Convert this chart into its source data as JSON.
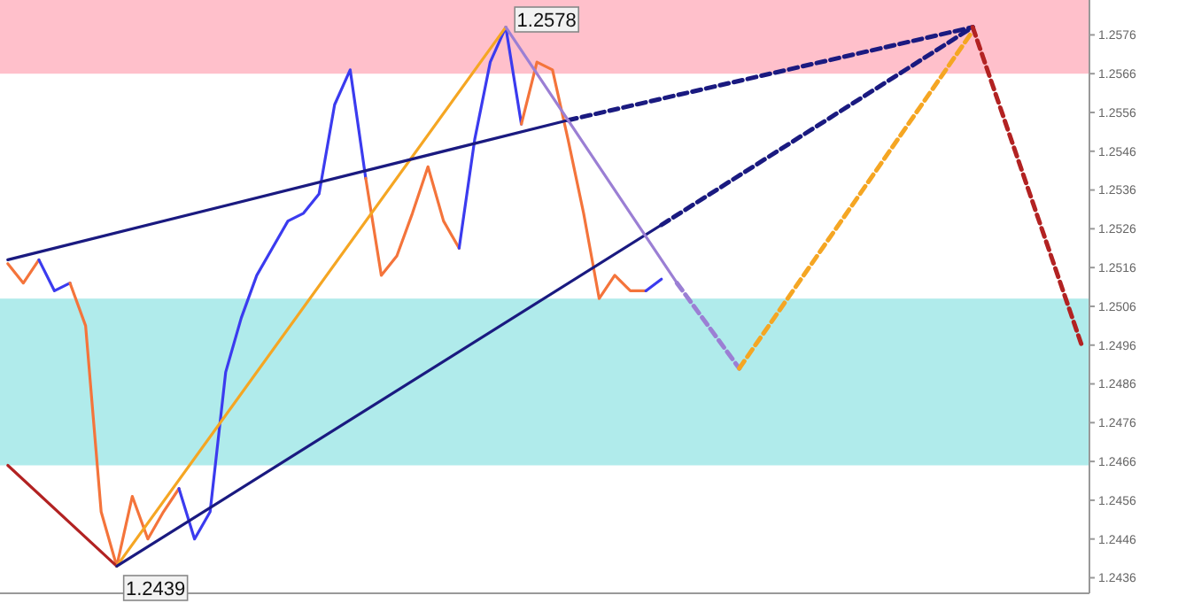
{
  "chart_data": {
    "type": "line",
    "categories": [
      null,
      null,
      null,
      null,
      null,
      null,
      null,
      null,
      null,
      null,
      null,
      null,
      null,
      null,
      null,
      null,
      null,
      null,
      null,
      null,
      null,
      null,
      null,
      null,
      null,
      null,
      null,
      null,
      null,
      null,
      null,
      null,
      null,
      null,
      null,
      null,
      null,
      null,
      null,
      null,
      null,
      null,
      null,
      null,
      null,
      null,
      null,
      null,
      null,
      null,
      null,
      null,
      null,
      null,
      null,
      null,
      null,
      null,
      null,
      null,
      null,
      null,
      null,
      null,
      null,
      null,
      null,
      null,
      null,
      null
    ],
    "ylim": [
      1.2432,
      1.2585
    ],
    "yticks": [
      1.2436,
      1.2446,
      1.2456,
      1.2466,
      1.2476,
      1.2486,
      1.2496,
      1.2506,
      1.2516,
      1.2526,
      1.2536,
      1.2546,
      1.2556,
      1.2566,
      1.2576
    ],
    "grid": false,
    "bands": [
      {
        "axis": "y",
        "from": 1.2566,
        "to": 1.2585,
        "color": "#ffc0cb"
      },
      {
        "axis": "y",
        "from": 1.2465,
        "to": 1.2508,
        "color": "#b0ebeb"
      }
    ],
    "series": [
      {
        "color": "#f4743b",
        "values": [
          1.2517,
          1.2512,
          1.2518,
          null,
          null,
          null,
          null,
          null,
          null,
          null,
          null,
          null,
          null,
          null,
          null,
          null,
          null,
          null,
          null,
          null,
          null,
          null,
          null,
          null,
          null,
          null,
          null,
          null,
          null,
          null,
          null,
          null,
          null,
          null,
          null,
          null,
          null,
          null,
          null,
          null,
          null,
          null,
          null,
          null,
          null,
          null,
          null,
          null,
          null,
          null,
          null,
          null,
          null,
          null,
          null,
          null,
          null,
          null,
          null,
          null,
          null,
          null,
          null,
          null,
          null,
          null,
          null,
          null,
          null,
          null
        ]
      },
      {
        "color": "#3b3bef",
        "values": [
          null,
          null,
          1.2518,
          1.251,
          1.2512,
          null,
          null,
          null,
          null,
          null,
          null,
          null,
          null,
          null,
          null,
          null,
          null,
          null,
          null,
          null,
          null,
          null,
          null,
          null,
          null,
          null,
          null,
          null,
          null,
          null,
          null,
          null,
          null,
          null,
          null,
          null,
          null,
          null,
          null,
          null,
          null,
          null,
          null,
          null,
          null,
          null,
          null,
          null,
          null,
          null,
          null,
          null,
          null,
          null,
          null,
          null,
          null,
          null,
          null,
          null,
          null,
          null,
          null,
          null,
          null,
          null,
          null,
          null,
          null,
          null
        ]
      },
      {
        "color": "#f4743b",
        "values": [
          null,
          null,
          null,
          null,
          1.2512,
          1.2501,
          1.2453,
          1.2439,
          1.2457,
          1.2446,
          1.2453,
          1.2459,
          null,
          null,
          null,
          null,
          null,
          null,
          null,
          null,
          null,
          null,
          null,
          null,
          null,
          null,
          null,
          null,
          null,
          null,
          null,
          null,
          null,
          null,
          null,
          null,
          null,
          null,
          null,
          null,
          null,
          null,
          null,
          null,
          null,
          null,
          null,
          null,
          null,
          null,
          null,
          null,
          null,
          null,
          null,
          null,
          null,
          null,
          null,
          null,
          null,
          null,
          null,
          null,
          null,
          null,
          null,
          null,
          null,
          null
        ]
      },
      {
        "color": "#3b3bef",
        "values": [
          null,
          null,
          null,
          null,
          null,
          null,
          null,
          null,
          null,
          null,
          null,
          1.2459,
          1.2446,
          1.2453,
          1.2489,
          1.2503,
          1.2514,
          1.2521,
          1.2528,
          1.253,
          1.2535,
          1.2558,
          1.2567,
          1.2539,
          null,
          null,
          null,
          null,
          null,
          null,
          null,
          null,
          null,
          null,
          null,
          null,
          null,
          null,
          null,
          null,
          null,
          null,
          null,
          null,
          null,
          null,
          null,
          null,
          null,
          null,
          null,
          null,
          null,
          null,
          null,
          null,
          null,
          null,
          null,
          null,
          null,
          null,
          null,
          null,
          null,
          null,
          null,
          null,
          null,
          null
        ]
      },
      {
        "color": "#f4743b",
        "values": [
          null,
          null,
          null,
          null,
          null,
          null,
          null,
          null,
          null,
          null,
          null,
          null,
          null,
          null,
          null,
          null,
          null,
          null,
          null,
          null,
          null,
          null,
          null,
          1.2539,
          1.2514,
          1.2519,
          1.253,
          1.2542,
          1.2528,
          1.2521,
          null,
          null,
          null,
          null,
          null,
          null,
          null,
          null,
          null,
          null,
          null,
          null,
          null,
          null,
          null,
          null,
          null,
          null,
          null,
          null,
          null,
          null,
          null,
          null,
          null,
          null,
          null,
          null,
          null,
          null,
          null,
          null,
          null,
          null,
          null,
          null,
          null,
          null,
          null,
          null
        ]
      },
      {
        "color": "#3b3bef",
        "values": [
          null,
          null,
          null,
          null,
          null,
          null,
          null,
          null,
          null,
          null,
          null,
          null,
          null,
          null,
          null,
          null,
          null,
          null,
          null,
          null,
          null,
          null,
          null,
          null,
          null,
          null,
          null,
          null,
          null,
          1.2521,
          1.2549,
          1.2569,
          1.2578,
          1.2553,
          null,
          null,
          null,
          null,
          null,
          null,
          null,
          null,
          null,
          null,
          null,
          null,
          null,
          null,
          null,
          null,
          null,
          null,
          null,
          null,
          null,
          null,
          null,
          null,
          null,
          null,
          null,
          null,
          null,
          null,
          null,
          null,
          null,
          null,
          null,
          null
        ]
      },
      {
        "color": "#f4743b",
        "values": [
          null,
          null,
          null,
          null,
          null,
          null,
          null,
          null,
          null,
          null,
          null,
          null,
          null,
          null,
          null,
          null,
          null,
          null,
          null,
          null,
          null,
          null,
          null,
          null,
          null,
          null,
          null,
          null,
          null,
          null,
          null,
          null,
          null,
          1.2553,
          1.2569,
          1.2567,
          1.2549,
          1.253,
          1.2508,
          1.2514,
          1.251,
          1.251,
          null,
          null,
          null,
          null,
          null,
          null,
          null,
          null,
          null,
          null,
          null,
          null,
          null,
          null,
          null,
          null,
          null,
          null,
          null,
          null,
          null,
          null,
          null,
          null,
          null,
          null,
          null,
          null
        ]
      },
      {
        "color": "#3b3bef",
        "values": [
          null,
          null,
          null,
          null,
          null,
          null,
          null,
          null,
          null,
          null,
          null,
          null,
          null,
          null,
          null,
          null,
          null,
          null,
          null,
          null,
          null,
          null,
          null,
          null,
          null,
          null,
          null,
          null,
          null,
          null,
          null,
          null,
          null,
          null,
          null,
          null,
          null,
          null,
          null,
          null,
          null,
          1.251,
          1.2513,
          null,
          null,
          null,
          null,
          null,
          null,
          null,
          null,
          null,
          null,
          null,
          null,
          null,
          null,
          null,
          null,
          null,
          null,
          null,
          null,
          null,
          null,
          null,
          null,
          null,
          null,
          null
        ]
      },
      {
        "color": "#b22222",
        "values": [
          1.2465,
          null,
          null,
          null,
          null,
          null,
          null,
          1.2439,
          null,
          null,
          null,
          null,
          null,
          null,
          null,
          null,
          null,
          null,
          null,
          null,
          null,
          null,
          null,
          null,
          null,
          null,
          null,
          null,
          null,
          null,
          null,
          null,
          null,
          null,
          null,
          null,
          null,
          null,
          null,
          null,
          null,
          null,
          null,
          null,
          null,
          null,
          null,
          null,
          null,
          null,
          null,
          null,
          null,
          null,
          null,
          null,
          null,
          null,
          null,
          null,
          null,
          null,
          null,
          null,
          null,
          null,
          null,
          null,
          null,
          null
        ]
      },
      {
        "color": "#f5a623",
        "values": [
          null,
          null,
          null,
          null,
          null,
          null,
          null,
          1.2439,
          null,
          null,
          null,
          null,
          null,
          null,
          null,
          null,
          null,
          null,
          null,
          null,
          null,
          null,
          null,
          null,
          null,
          null,
          null,
          null,
          null,
          null,
          null,
          null,
          1.2578,
          null,
          null,
          null,
          null,
          null,
          null,
          null,
          null,
          null,
          null,
          null,
          null,
          null,
          null,
          null,
          null,
          null,
          null,
          null,
          null,
          null,
          null,
          null,
          null,
          null,
          null,
          null,
          null,
          null,
          null,
          null,
          null,
          null,
          null,
          null,
          null,
          null
        ]
      },
      {
        "color": "#1a1a80",
        "values": [
          1.2518,
          null,
          null,
          null,
          null,
          null,
          null,
          null,
          null,
          null,
          null,
          null,
          null,
          null,
          null,
          null,
          null,
          null,
          null,
          null,
          null,
          null,
          null,
          null,
          null,
          null,
          null,
          null,
          null,
          null,
          null,
          null,
          null,
          null,
          null,
          null,
          1.2554,
          null,
          null,
          null,
          null,
          null,
          null,
          null,
          null,
          null,
          null,
          null,
          null,
          null,
          null,
          null,
          null,
          null,
          null,
          null,
          null,
          null,
          null,
          null,
          null,
          null,
          null,
          null,
          null,
          null,
          null,
          null,
          null,
          null
        ]
      },
      {
        "color": "#1a1a80",
        "line_style": "dashed",
        "values": [
          null,
          null,
          null,
          null,
          null,
          null,
          null,
          null,
          null,
          null,
          null,
          null,
          null,
          null,
          null,
          null,
          null,
          null,
          null,
          null,
          null,
          null,
          null,
          null,
          null,
          null,
          null,
          null,
          null,
          null,
          null,
          null,
          null,
          null,
          null,
          null,
          1.2554,
          null,
          null,
          null,
          null,
          null,
          null,
          null,
          null,
          null,
          null,
          null,
          null,
          null,
          null,
          null,
          null,
          null,
          null,
          null,
          null,
          null,
          null,
          null,
          null,
          null,
          1.2578,
          null,
          null,
          null,
          null,
          null,
          null,
          null
        ]
      },
      {
        "color": "#1a1a80",
        "values": [
          null,
          null,
          null,
          null,
          null,
          null,
          null,
          1.2439,
          null,
          null,
          null,
          null,
          null,
          null,
          null,
          null,
          null,
          null,
          null,
          null,
          null,
          null,
          null,
          null,
          null,
          null,
          null,
          null,
          null,
          null,
          null,
          null,
          null,
          null,
          null,
          null,
          null,
          null,
          null,
          null,
          null,
          null,
          1.2527,
          null,
          null,
          null,
          null,
          null,
          null,
          null,
          null,
          null,
          null,
          null,
          null,
          null,
          null,
          null,
          null,
          null,
          null,
          null,
          null,
          null,
          null,
          null,
          null,
          null,
          null,
          null
        ]
      },
      {
        "color": "#1a1a80",
        "line_style": "dashed",
        "values": [
          null,
          null,
          null,
          null,
          null,
          null,
          null,
          null,
          null,
          null,
          null,
          null,
          null,
          null,
          null,
          null,
          null,
          null,
          null,
          null,
          null,
          null,
          null,
          null,
          null,
          null,
          null,
          null,
          null,
          null,
          null,
          null,
          null,
          null,
          null,
          null,
          null,
          null,
          null,
          null,
          null,
          null,
          1.2527,
          null,
          null,
          null,
          null,
          null,
          null,
          null,
          null,
          null,
          null,
          null,
          null,
          null,
          null,
          null,
          null,
          null,
          null,
          null,
          1.2578,
          null,
          null,
          null,
          null,
          null,
          null,
          null
        ]
      },
      {
        "color": "#9b7fd4",
        "values": [
          null,
          null,
          null,
          null,
          null,
          null,
          null,
          null,
          null,
          null,
          null,
          null,
          null,
          null,
          null,
          null,
          null,
          null,
          null,
          null,
          null,
          null,
          null,
          null,
          null,
          null,
          null,
          null,
          null,
          null,
          null,
          null,
          1.2578,
          null,
          null,
          null,
          null,
          null,
          null,
          null,
          null,
          null,
          null,
          1.2512,
          null,
          null,
          null,
          null,
          null,
          null,
          null,
          null,
          null,
          null,
          null,
          null,
          null,
          null,
          null,
          null,
          null,
          null,
          null,
          null,
          null,
          null,
          null,
          null,
          null,
          null
        ]
      },
      {
        "color": "#9b7fd4",
        "line_style": "dashed",
        "values": [
          null,
          null,
          null,
          null,
          null,
          null,
          null,
          null,
          null,
          null,
          null,
          null,
          null,
          null,
          null,
          null,
          null,
          null,
          null,
          null,
          null,
          null,
          null,
          null,
          null,
          null,
          null,
          null,
          null,
          null,
          null,
          null,
          null,
          null,
          null,
          null,
          null,
          null,
          null,
          null,
          null,
          null,
          null,
          1.2512,
          null,
          null,
          null,
          1.249,
          null,
          null,
          null,
          null,
          null,
          null,
          null,
          null,
          null,
          null,
          null,
          null,
          null,
          null,
          null,
          null,
          null,
          null,
          null,
          null,
          null,
          null
        ]
      },
      {
        "color": "#f5a623",
        "line_style": "dashed",
        "values": [
          null,
          null,
          null,
          null,
          null,
          null,
          null,
          null,
          null,
          null,
          null,
          null,
          null,
          null,
          null,
          null,
          null,
          null,
          null,
          null,
          null,
          null,
          null,
          null,
          null,
          null,
          null,
          null,
          null,
          null,
          null,
          null,
          null,
          null,
          null,
          null,
          null,
          null,
          null,
          null,
          null,
          null,
          null,
          null,
          null,
          null,
          null,
          1.249,
          null,
          null,
          null,
          null,
          null,
          null,
          null,
          null,
          null,
          null,
          null,
          null,
          null,
          null,
          1.2577,
          null,
          null,
          null,
          null,
          null,
          null,
          null
        ]
      },
      {
        "color": "#b22222",
        "line_style": "dashed",
        "values": [
          null,
          null,
          null,
          null,
          null,
          null,
          null,
          null,
          null,
          null,
          null,
          null,
          null,
          null,
          null,
          null,
          null,
          null,
          null,
          null,
          null,
          null,
          null,
          null,
          null,
          null,
          null,
          null,
          null,
          null,
          null,
          null,
          null,
          null,
          null,
          null,
          null,
          null,
          null,
          null,
          null,
          null,
          null,
          null,
          null,
          null,
          null,
          null,
          null,
          null,
          null,
          null,
          null,
          null,
          null,
          null,
          null,
          null,
          null,
          null,
          null,
          null,
          1.2578,
          null,
          null,
          null,
          null,
          null,
          null,
          1.2496
        ]
      }
    ],
    "annotations": [
      "1.2578",
      "1.2439"
    ]
  }
}
